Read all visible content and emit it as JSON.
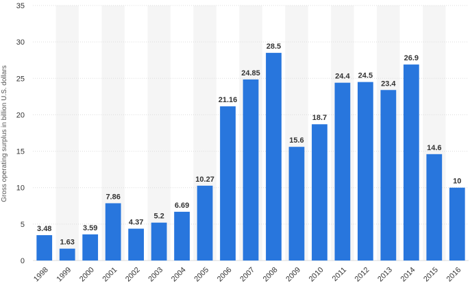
{
  "chart_data": {
    "type": "bar",
    "ylabel": "Gross operating surplus in billion U.S. dollars",
    "xlabel": "",
    "categories": [
      "1998",
      "1999",
      "2000",
      "2001",
      "2002",
      "2003",
      "2004",
      "2005",
      "2006",
      "2007",
      "2008",
      "2009",
      "2010",
      "2011",
      "2012",
      "2013",
      "2014",
      "2015",
      "2016"
    ],
    "values": [
      3.48,
      1.63,
      3.59,
      7.86,
      4.37,
      5.2,
      6.69,
      10.27,
      21.16,
      24.85,
      28.5,
      15.6,
      18.7,
      24.4,
      24.5,
      23.4,
      26.9,
      14.6,
      10
    ],
    "value_labels": [
      "3.48",
      "1.63",
      "3.59",
      "7.86",
      "4.37",
      "5.2",
      "6.69",
      "10.27",
      "21.16",
      "24.85",
      "28.5",
      "15.6",
      "18.7",
      "24.4",
      "24.5",
      "23.4",
      "26.9",
      "14.6",
      "10"
    ],
    "ylim": [
      0,
      35
    ],
    "yticks": [
      "0",
      "5",
      "10",
      "15",
      "20",
      "25",
      "30",
      "35"
    ],
    "grid": true,
    "bar_color": "#2876dd",
    "band_color": "#f5f5f5",
    "grid_color": "#dcdcdc"
  }
}
